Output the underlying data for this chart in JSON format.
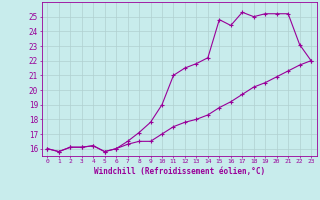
{
  "xlabel": "Windchill (Refroidissement éolien,°C)",
  "ylabel": "",
  "bg_color": "#c8ecec",
  "line_color": "#990099",
  "grid_color": "#b0d0d0",
  "xlim": [
    -0.5,
    23.5
  ],
  "ylim": [
    15.5,
    26.0
  ],
  "xticks": [
    0,
    1,
    2,
    3,
    4,
    5,
    6,
    7,
    8,
    9,
    10,
    11,
    12,
    13,
    14,
    15,
    16,
    17,
    18,
    19,
    20,
    21,
    22,
    23
  ],
  "yticks": [
    16,
    17,
    18,
    19,
    20,
    21,
    22,
    23,
    24,
    25
  ],
  "line1": [
    16.0,
    15.8,
    16.1,
    16.1,
    16.2,
    15.8,
    16.0,
    16.5,
    17.1,
    17.8,
    19.0,
    21.0,
    21.5,
    21.8,
    22.2,
    24.8,
    24.4,
    25.3,
    25.0,
    25.2,
    25.2,
    25.2,
    23.1,
    22.0
  ],
  "line2": [
    16.0,
    15.8,
    16.1,
    16.1,
    16.2,
    15.8,
    16.0,
    16.3,
    16.5,
    16.5,
    17.0,
    17.5,
    17.8,
    18.0,
    18.3,
    18.8,
    19.2,
    19.7,
    20.2,
    20.5,
    20.9,
    21.3,
    21.7,
    22.0
  ]
}
